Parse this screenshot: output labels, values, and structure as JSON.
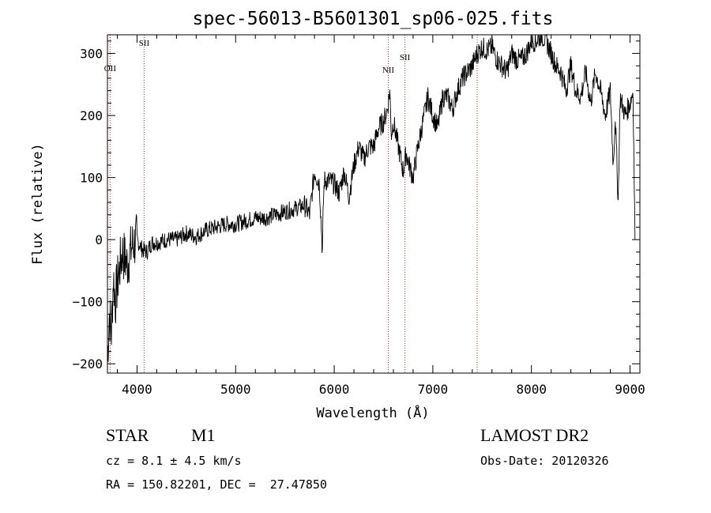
{
  "chart_data": {
    "type": "line",
    "title": "spec-56013-B5601301_sp06-025.fits",
    "xlabel": "Wavelength (Å)",
    "ylabel": "Flux (relative)",
    "xlim": [
      3700,
      9100
    ],
    "ylim": [
      -215,
      330
    ],
    "xticks": [
      4000,
      5000,
      6000,
      7000,
      8000,
      9000
    ],
    "yticks": [
      -200,
      -100,
      0,
      100,
      200,
      300
    ],
    "series": [
      {
        "x": [
          3700,
          3720,
          3740,
          3760,
          3780,
          3800,
          3850,
          3900,
          3950,
          4000,
          4050,
          4100,
          4150,
          4200,
          4300,
          4400,
          4500,
          4600,
          4700,
          4800,
          4900,
          5000,
          5100,
          5200,
          5300,
          5400,
          5500,
          5600,
          5700,
          5750,
          5800,
          5850,
          5880,
          5890,
          5900,
          5950,
          6000,
          6050,
          6100,
          6150,
          6200,
          6250,
          6300,
          6350,
          6400,
          6450,
          6500,
          6540,
          6563,
          6580,
          6600,
          6650,
          6700,
          6730,
          6760,
          6800,
          6850,
          6900,
          6950,
          7000,
          7050,
          7100,
          7150,
          7200,
          7250,
          7300,
          7350,
          7400,
          7450,
          7500,
          7550,
          7600,
          7650,
          7700,
          7750,
          7800,
          7850,
          7900,
          7950,
          8000,
          8050,
          8100,
          8150,
          8200,
          8250,
          8300,
          8350,
          8400,
          8450,
          8500,
          8550,
          8600,
          8650,
          8700,
          8750,
          8800,
          8830,
          8850,
          8880,
          8900,
          8950,
          9000,
          9030,
          9050
        ],
        "y": [
          -190,
          -120,
          -150,
          -60,
          -100,
          -70,
          -20,
          -40,
          -10,
          0,
          -15,
          -20,
          -5,
          -5,
          0,
          0,
          10,
          5,
          15,
          20,
          25,
          25,
          30,
          35,
          35,
          40,
          45,
          50,
          55,
          40,
          110,
          90,
          -20,
          60,
          95,
          95,
          90,
          75,
          110,
          70,
          120,
          150,
          130,
          150,
          150,
          180,
          190,
          210,
          240,
          170,
          190,
          150,
          110,
          140,
          120,
          100,
          150,
          190,
          230,
          200,
          180,
          230,
          230,
          210,
          240,
          260,
          270,
          280,
          300,
          310,
          305,
          310,
          290,
          280,
          270,
          300,
          290,
          290,
          300,
          320,
          320,
          330,
          320,
          300,
          280,
          270,
          240,
          280,
          240,
          230,
          270,
          220,
          270,
          240,
          200,
          240,
          120,
          200,
          60,
          230,
          200,
          220,
          240,
          0
        ]
      }
    ],
    "annotations": [
      {
        "label": "OII",
        "x": 3727
      },
      {
        "label": "SII",
        "x": 4072
      },
      {
        "label": "NII",
        "x": 6548
      },
      {
        "label": "SII",
        "x": 6717
      },
      {
        "label": "",
        "x": 7450
      }
    ],
    "grid": false,
    "line_color": "#000000",
    "marker_color": "#a03030"
  },
  "info": {
    "class_label": "STAR",
    "subclass": "M1",
    "survey": "LAMOST DR2",
    "cz": "cz = 8.1 ± 4.5 km/s",
    "obs_date": "Obs-Date: 20120326",
    "coords": "RA = 150.82201, DEC =  27.47850"
  }
}
